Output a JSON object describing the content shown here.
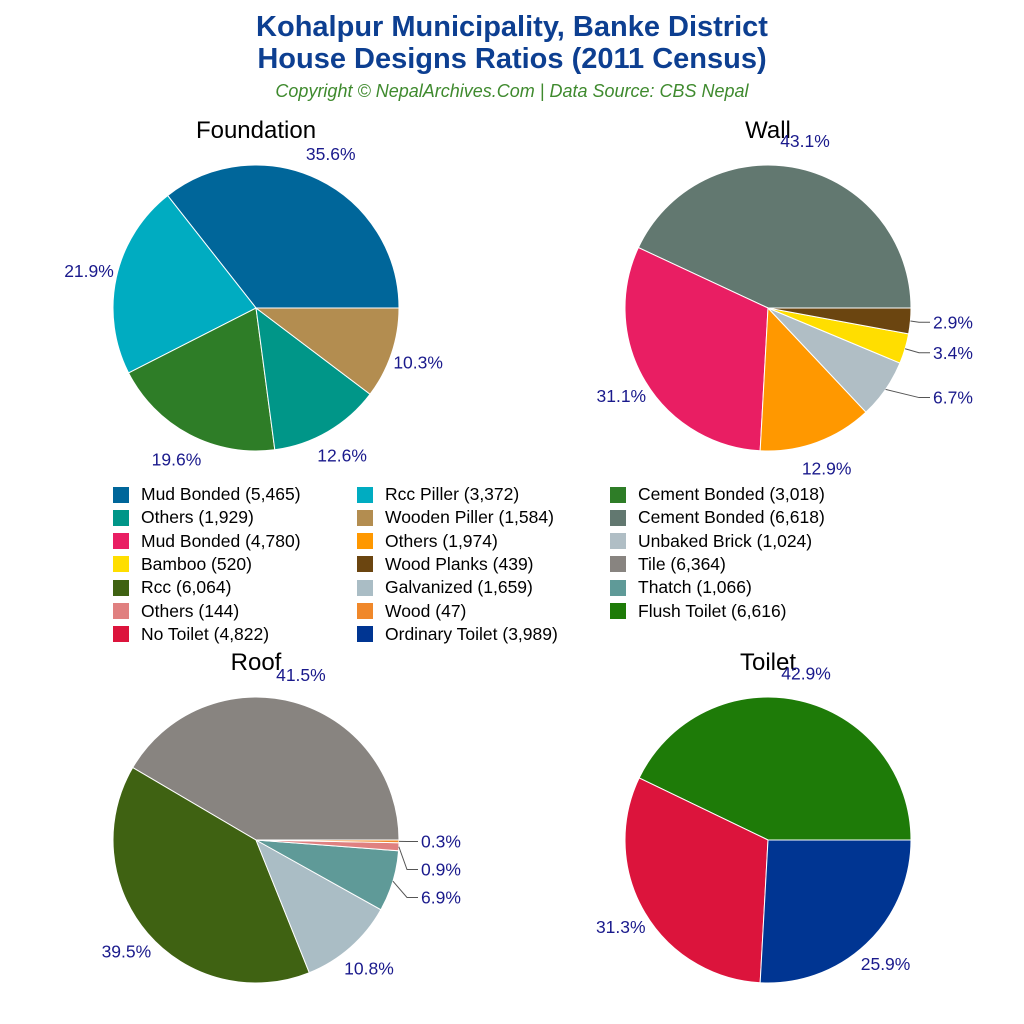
{
  "title_line1": "Kohalpur Municipality, Banke District",
  "title_line2": "House Designs Ratios (2011 Census)",
  "subtitle": "Copyright © NepalArchives.Com | Data Source: CBS Nepal",
  "chart_data": [
    {
      "type": "pie",
      "title": "Foundation",
      "slices": [
        {
          "label": "Mud Bonded",
          "count": 5465,
          "pct": 35.6,
          "color": "#00669a"
        },
        {
          "label": "Rcc Piller",
          "count": 3372,
          "pct": 21.9,
          "color": "#00acc1"
        },
        {
          "label": "Cement Bonded",
          "count": 3018,
          "pct": 19.6,
          "color": "#2e7d27"
        },
        {
          "label": "Others",
          "count": 1929,
          "pct": 12.6,
          "color": "#009688"
        },
        {
          "label": "Wooden Piller",
          "count": 1584,
          "pct": 10.3,
          "color": "#b38d50"
        }
      ]
    },
    {
      "type": "pie",
      "title": "Wall",
      "slices": [
        {
          "label": "Cement Bonded",
          "count": 6618,
          "pct": 43.1,
          "color": "#627870"
        },
        {
          "label": "Mud Bonded",
          "count": 4780,
          "pct": 31.1,
          "color": "#e91e63"
        },
        {
          "label": "Others",
          "count": 1974,
          "pct": 12.9,
          "color": "#ff9800"
        },
        {
          "label": "Unbaked Brick",
          "count": 1024,
          "pct": 6.7,
          "color": "#b0bec5"
        },
        {
          "label": "Bamboo",
          "count": 520,
          "pct": 3.4,
          "color": "#ffde00"
        },
        {
          "label": "Wood Planks",
          "count": 439,
          "pct": 2.9,
          "color": "#6b4510"
        }
      ]
    },
    {
      "type": "pie",
      "title": "Roof",
      "slices": [
        {
          "label": "Tile",
          "count": 6364,
          "pct": 41.5,
          "color": "#888480"
        },
        {
          "label": "Rcc",
          "count": 6064,
          "pct": 39.5,
          "color": "#3f6212"
        },
        {
          "label": "Galvanized",
          "count": 1659,
          "pct": 10.8,
          "color": "#aabdc5"
        },
        {
          "label": "Thatch",
          "count": 1066,
          "pct": 6.9,
          "color": "#5f9a98"
        },
        {
          "label": "Others",
          "count": 144,
          "pct": 0.9,
          "color": "#e08080"
        },
        {
          "label": "Wood",
          "count": 47,
          "pct": 0.3,
          "color": "#f0882a"
        }
      ]
    },
    {
      "type": "pie",
      "title": "Toilet",
      "slices": [
        {
          "label": "Flush Toilet",
          "count": 6616,
          "pct": 42.9,
          "color": "#1e7b08"
        },
        {
          "label": "No Toilet",
          "count": 4822,
          "pct": 31.3,
          "color": "#dc143c"
        },
        {
          "label": "Ordinary Toilet",
          "count": 3989,
          "pct": 25.9,
          "color": "#003592"
        }
      ]
    }
  ],
  "legend": [
    "Mud Bonded (5,465)",
    "Rcc Piller (3,372)",
    "Cement Bonded (3,018)",
    "Others (1,929)",
    "Wooden Piller (1,584)",
    "Cement Bonded (6,618)",
    "Mud Bonded (4,780)",
    "Others (1,974)",
    "Unbaked Brick (1,024)",
    "Bamboo (520)",
    "Wood Planks (439)",
    "Tile (6,364)",
    "Rcc (6,064)",
    "Galvanized (1,659)",
    "Thatch (1,066)",
    "Others (144)",
    "Wood (47)",
    "Flush Toilet (6,616)",
    "No Toilet (4,822)",
    "Ordinary Toilet (3,989)"
  ],
  "legend_colors": [
    "#00669a",
    "#00acc1",
    "#2e7d27",
    "#009688",
    "#b38d50",
    "#627870",
    "#e91e63",
    "#ff9800",
    "#b0bec5",
    "#ffde00",
    "#6b4510",
    "#888480",
    "#3f6212",
    "#aabdc5",
    "#5f9a98",
    "#e08080",
    "#f0882a",
    "#1e7b08",
    "#dc143c",
    "#003592"
  ],
  "label_color": "#1a1a8c"
}
